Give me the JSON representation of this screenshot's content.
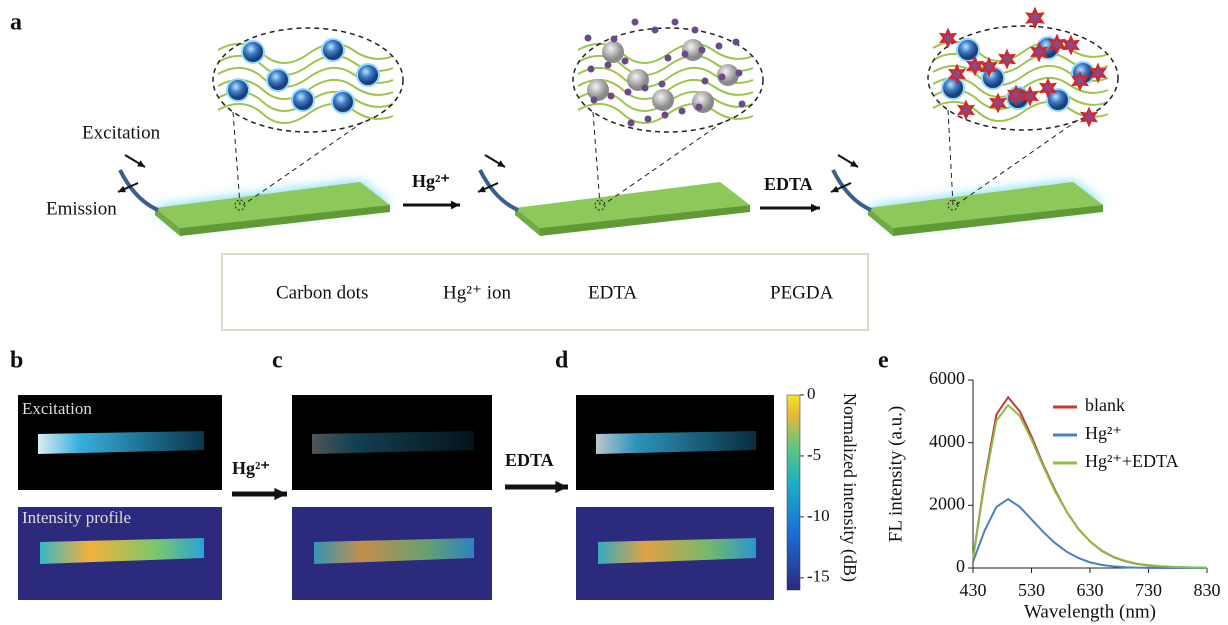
{
  "figure": {
    "panel_labels": [
      "a",
      "b",
      "c",
      "d",
      "e"
    ],
    "panel_a": {
      "excitation": "Excitation",
      "emission": "Emission",
      "step1": "Hg²⁺",
      "step2": "EDTA",
      "legend": [
        "Carbon dots",
        "Hg²⁺ ion",
        "EDTA",
        "PEGDA"
      ]
    },
    "panel_bcd": {
      "excitation": "Excitation",
      "intensity_profile": "Intensity profile",
      "step1": "Hg²⁺",
      "step2": "EDTA"
    },
    "colorbar": {
      "label": "Normalized intensity (dB)",
      "lim": [
        -16,
        0
      ],
      "ticks": [
        0,
        -5,
        -10,
        -15
      ]
    }
  },
  "chart_data": {
    "type": "line",
    "xlabel": "Wavelength (nm)",
    "ylabel": "FL intensity (a.u.)",
    "x": [
      430,
      450,
      470,
      490,
      510,
      530,
      550,
      570,
      590,
      610,
      630,
      650,
      670,
      690,
      710,
      730,
      750,
      770,
      790,
      810,
      830
    ],
    "series": [
      {
        "name": "blank",
        "color": "#c0393b",
        "values": [
          300,
          2800,
          4900,
          5450,
          5000,
          4200,
          3300,
          2500,
          1800,
          1250,
          850,
          550,
          350,
          220,
          130,
          80,
          50,
          30,
          20,
          10,
          5
        ]
      },
      {
        "name": "Hg²⁺",
        "color": "#4a7fc1",
        "values": [
          200,
          1200,
          1950,
          2200,
          1950,
          1550,
          1150,
          800,
          520,
          320,
          180,
          100,
          50,
          25,
          10,
          5,
          0,
          0,
          0,
          0,
          0
        ]
      },
      {
        "name": "Hg²⁺+EDTA",
        "color": "#8fbc45",
        "values": [
          300,
          2700,
          4700,
          5200,
          4850,
          4100,
          3250,
          2450,
          1800,
          1250,
          850,
          560,
          360,
          230,
          140,
          90,
          60,
          40,
          25,
          15,
          10
        ]
      }
    ],
    "xlim": [
      430,
      830
    ],
    "xticks": [
      430,
      530,
      630,
      730,
      830
    ],
    "ylim": [
      0,
      6000
    ],
    "yticks": [
      0,
      2000,
      4000,
      6000
    ]
  }
}
